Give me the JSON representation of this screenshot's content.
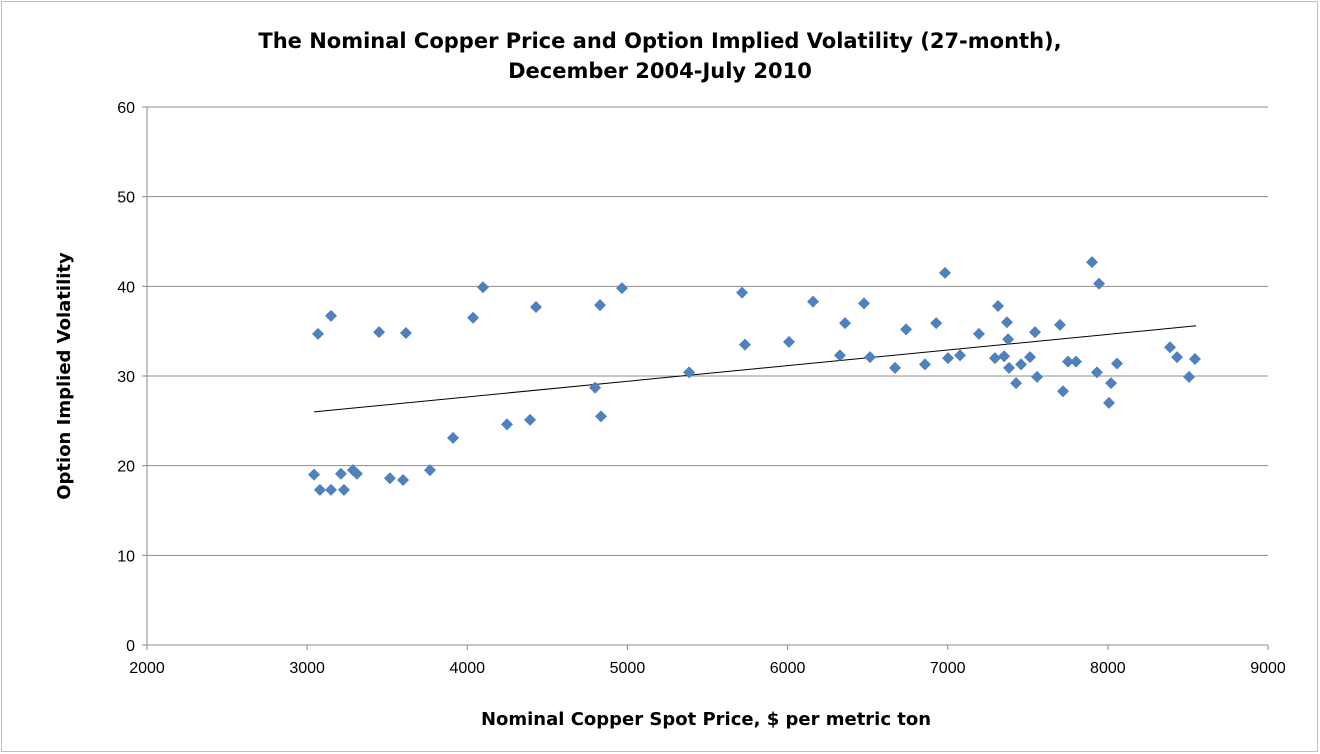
{
  "chart_data": {
    "type": "scatter",
    "title": [
      "The Nominal Copper Price and Option Implied Volatility (27-month),",
      "December 2004-July 2010"
    ],
    "x_label": "Nominal Copper Spot Price, $ per metric ton",
    "y_label": "Option Implied Volatility",
    "xlim": [
      2000,
      9000
    ],
    "xticks": [
      2000,
      3000,
      4000,
      5000,
      6000,
      7000,
      8000,
      9000
    ],
    "ylim": [
      0,
      60
    ],
    "yticks": [
      0,
      10,
      20,
      30,
      40,
      50,
      60
    ],
    "grid": true,
    "color": "#4f81bd",
    "x": [
      3043,
      3068,
      3080,
      3149,
      3149,
      3211,
      3230,
      3286,
      3311,
      3449,
      3517,
      3599,
      3617,
      3767,
      3911,
      4036,
      4098,
      4248,
      4392,
      4429,
      4798,
      4829,
      4835,
      4966,
      5385,
      5716,
      5734,
      6009,
      6159,
      6327,
      6359,
      6477,
      6515,
      6671,
      6740,
      6858,
      6928,
      6983,
      7002,
      7077,
      7195,
      7295,
      7314,
      7352,
      7370,
      7377,
      7383,
      7427,
      7458,
      7514,
      7545,
      7558,
      7701,
      7720,
      7751,
      7801,
      7901,
      7932,
      7945,
      8007,
      8020,
      8057,
      8388,
      8432,
      8507,
      8544
    ],
    "y": [
      19.0,
      34.7,
      17.3,
      36.7,
      17.3,
      19.1,
      17.3,
      19.5,
      19.1,
      34.9,
      18.6,
      18.4,
      34.8,
      19.5,
      23.1,
      36.5,
      39.9,
      24.6,
      25.1,
      37.7,
      28.7,
      37.9,
      25.5,
      39.8,
      30.4,
      39.3,
      33.5,
      33.8,
      38.3,
      32.3,
      35.9,
      38.1,
      32.1,
      30.9,
      35.2,
      31.3,
      35.9,
      41.5,
      32.0,
      32.3,
      34.7,
      32.0,
      37.8,
      32.2,
      36.0,
      34.1,
      30.9,
      29.2,
      31.3,
      32.1,
      34.9,
      29.9,
      35.7,
      28.3,
      31.6,
      31.6,
      42.7,
      30.4,
      40.3,
      27.0,
      29.2,
      31.4,
      33.2,
      32.1,
      29.9,
      31.9
    ],
    "trendline": {
      "x": [
        3043,
        8551
      ],
      "y": [
        26.0,
        35.6
      ]
    }
  }
}
